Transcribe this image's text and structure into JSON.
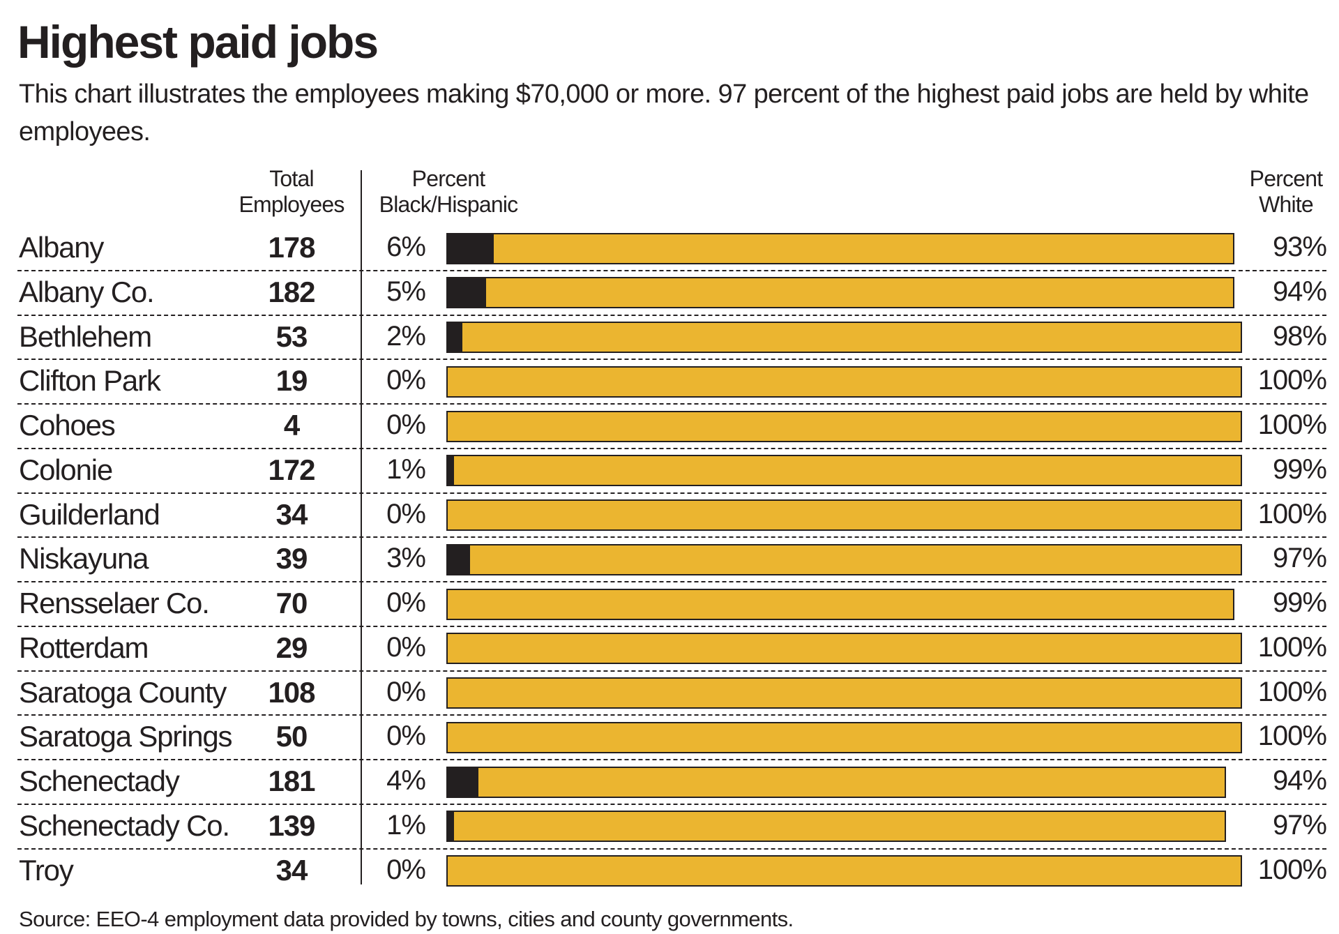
{
  "chart_data": {
    "type": "bar",
    "stacked": true,
    "orientation": "horizontal",
    "title": "Highest paid jobs",
    "subtitle": "This chart illustrates the employees making $70,000 or more. 97 percent of the highest paid jobs are held by white employees.",
    "columns": {
      "total": "Total Employees",
      "total_lines": [
        "Total",
        "Employees"
      ],
      "black_hispanic_lines": [
        "Percent",
        "Black/Hispanic"
      ],
      "white_lines": [
        "Percent",
        "White"
      ]
    },
    "xlim": [
      0,
      100
    ],
    "grid": false,
    "colors": {
      "black_hispanic": "#231f20",
      "white": "#ebb530"
    },
    "categories": [
      "Albany",
      "Albany Co.",
      "Bethlehem",
      "Clifton Park",
      "Cohoes",
      "Colonie",
      "Guilderland",
      "Niskayuna",
      "Rensselaer Co.",
      "Rotterdam",
      "Saratoga County",
      "Saratoga Springs",
      "Schenectady",
      "Schenectady Co.",
      "Troy"
    ],
    "total_employees": [
      178,
      182,
      53,
      19,
      4,
      172,
      34,
      39,
      70,
      29,
      108,
      50,
      181,
      139,
      34
    ],
    "series": [
      {
        "name": "Percent Black/Hispanic",
        "values": [
          6,
          5,
          2,
          0,
          0,
          1,
          0,
          3,
          0,
          0,
          0,
          0,
          4,
          1,
          0
        ]
      },
      {
        "name": "Percent White",
        "values": [
          93,
          94,
          98,
          100,
          100,
          99,
          100,
          97,
          99,
          100,
          100,
          100,
          94,
          97,
          100
        ]
      }
    ],
    "source": "Source: EEO-4 employment data provided by towns, cities and county governments."
  }
}
